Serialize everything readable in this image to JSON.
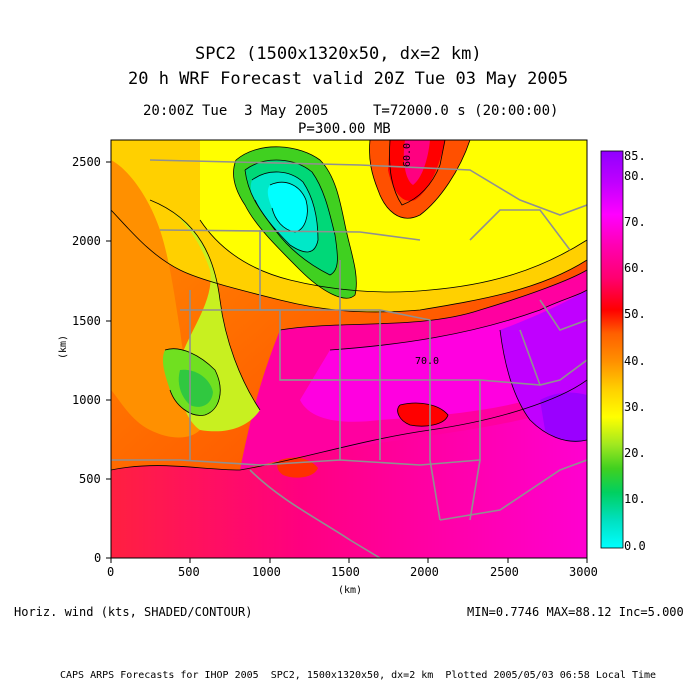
{
  "title_line1": "SPC2 (1500x1320x50, dx=2 km)",
  "title_line2": "20 h WRF Forecast valid 20Z Tue 03 May 2005",
  "valid_time": "20:00Z Tue  3 May 2005",
  "model_time": "T=72000.0 s (20:00:00)",
  "level": "P=300.00 MB",
  "field_label": "Horiz. wind (kts, SHADED/CONTOUR)",
  "stats": "MIN=0.7746 MAX=88.12 Inc=5.000",
  "footer": "CAPS ARPS Forecasts for IHOP 2005  SPC2, 1500x1320x50, dx=2 km  Plotted 2005/05/03 06:58 Local Time",
  "x_axis": {
    "label": "(km)",
    "ticks": [
      "0",
      "500",
      "1000",
      "1500",
      "2000",
      "2500",
      "3000"
    ],
    "range": [
      0,
      3000
    ]
  },
  "y_axis": {
    "label": "(km)",
    "ticks": [
      "0",
      "500",
      "1000",
      "1500",
      "2000",
      "2500"
    ],
    "range": [
      0,
      2640
    ]
  },
  "contour_labels": [
    "60.0",
    "70.0"
  ],
  "colorbar": {
    "labels": [
      "85.",
      "80.",
      "70.",
      "60.",
      "50.",
      "40.",
      "30.",
      "20.",
      "10.",
      "0.0"
    ],
    "colors": [
      "#00ffff",
      "#00e8c8",
      "#00d878",
      "#28d028",
      "#80e020",
      "#c8f020",
      "#ffff00",
      "#ffe000",
      "#ffc000",
      "#ffa000",
      "#ff7800",
      "#ff5000",
      "#ff0000",
      "#ff1060",
      "#ff0090",
      "#ff00c0",
      "#ff00ff",
      "#e000ff",
      "#c000ff",
      "#a000ff"
    ]
  },
  "colors": {
    "ocean": "#ff8000",
    "jet_core": "#9a00ff",
    "weak_wind": "#00ffff",
    "ridge": "#ffff00",
    "boundaries": "#909090"
  }
}
